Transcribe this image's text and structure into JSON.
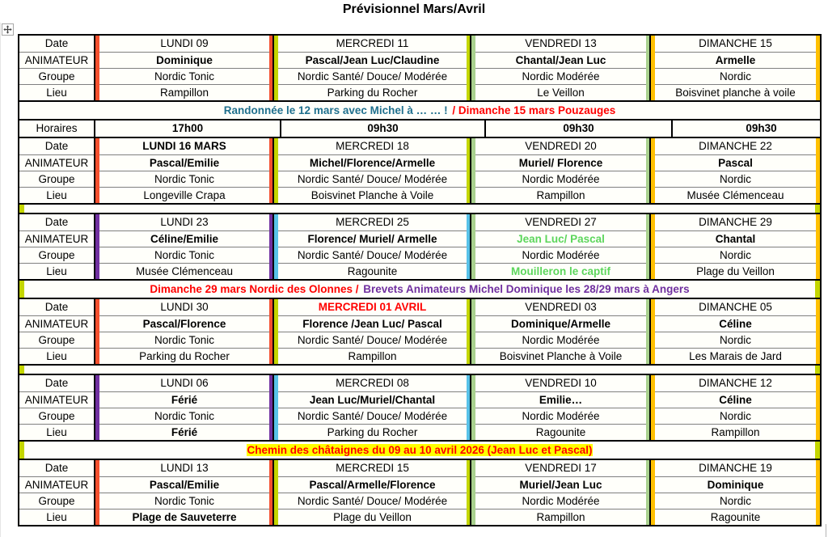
{
  "title": "Prévisionnel Mars/Avril",
  "palette": {
    "red": "#F4502E",
    "chartreuse": "#C4D600",
    "light_green": "#A9D18E",
    "gold": "#FFC000",
    "purple": "#7030A0",
    "sky_blue": "#58C2E8",
    "banner_teal": "#20708E",
    "text_red": "#FF0000",
    "text_purple": "#7030A0",
    "text_green": "#5CD65C",
    "highlight_yellow": "#FFFF00"
  },
  "row_labels": {
    "date": "Date",
    "animateur": "ANIMATEUR",
    "groupe": "Groupe",
    "lieu": "Lieu",
    "horaires": "Horaires"
  },
  "horaires": [
    "17h00",
    "09h30",
    "09h30",
    "09h30"
  ],
  "sections": [
    {
      "type": "block",
      "index": 0
    },
    {
      "type": "banner",
      "index": 0
    },
    {
      "type": "horaires"
    },
    {
      "type": "block",
      "index": 1
    },
    {
      "type": "spacer"
    },
    {
      "type": "block",
      "index": 2
    },
    {
      "type": "banner",
      "index": 1
    },
    {
      "type": "block",
      "index": 3
    },
    {
      "type": "spacer"
    },
    {
      "type": "block",
      "index": 4
    },
    {
      "type": "banner",
      "index": 2
    },
    {
      "type": "block",
      "index": 5
    }
  ],
  "banners": [
    {
      "edge_stripes": false,
      "segments": [
        {
          "t": "Randonnée le 12 mars avec Michel à … … ! ",
          "c": "banner_teal"
        },
        {
          "t": "/ Dimanche 15 mars Pouzauges",
          "c": "text_red"
        }
      ]
    },
    {
      "edge_stripes": true,
      "segments": [
        {
          "t": "Dimanche 29 mars Nordic des Olonnes / ",
          "c": "text_red"
        },
        {
          "t": "Brevets Animateurs Michel Dominique les 28/29 mars à Angers",
          "c": "text_purple"
        }
      ]
    },
    {
      "edge_stripes": true,
      "segments": [
        {
          "t": "Chemin des châtaignes du 09 au 10 avril 2026 (Jean Luc et Pascal)",
          "c": "text_red",
          "highlight": "highlight_yellow"
        }
      ]
    }
  ],
  "blocks": [
    {
      "stripes": [
        "red",
        "chartreuse",
        "light_green",
        "gold"
      ],
      "rows": {
        "date": [
          {
            "t": "LUNDI 09"
          },
          {
            "t": "MERCREDI 11"
          },
          {
            "t": "VENDREDI 13"
          },
          {
            "t": "DIMANCHE 15"
          }
        ],
        "animateur": [
          {
            "t": "Dominique"
          },
          {
            "t": "Pascal/Jean Luc/Claudine"
          },
          {
            "t": "Chantal/Jean Luc"
          },
          {
            "t": "Armelle"
          }
        ],
        "groupe": [
          {
            "t": "Nordic Tonic"
          },
          {
            "t": "Nordic Santé/ Douce/ Modérée"
          },
          {
            "t": "Nordic Modérée"
          },
          {
            "t": "Nordic"
          }
        ],
        "lieu": [
          {
            "t": "Rampillon"
          },
          {
            "t": "Parking du Rocher"
          },
          {
            "t": "Le Veillon"
          },
          {
            "t": "Boisvinet planche à voile"
          }
        ]
      }
    },
    {
      "stripes": [
        "red",
        "chartreuse",
        "light_green",
        "gold"
      ],
      "rows": {
        "date": [
          {
            "t": "LUNDI 16 MARS",
            "b": true
          },
          {
            "t": "MERCREDI 18"
          },
          {
            "t": "VENDREDI 20"
          },
          {
            "t": "DIMANCHE 22"
          }
        ],
        "animateur": [
          {
            "t": "Pascal/Emilie"
          },
          {
            "t": "Michel/Florence/Armelle"
          },
          {
            "t": "Muriel/ Florence"
          },
          {
            "t": "Pascal"
          }
        ],
        "groupe": [
          {
            "t": "Nordic Tonic"
          },
          {
            "t": "Nordic Santé/ Douce/ Modérée"
          },
          {
            "t": "Nordic Modérée"
          },
          {
            "t": "Nordic"
          }
        ],
        "lieu": [
          {
            "t": "Longeville Crapa"
          },
          {
            "t": "Boisvinet Planche à Voile"
          },
          {
            "t": "Rampillon"
          },
          {
            "t": "Musée Clémenceau"
          }
        ]
      }
    },
    {
      "stripes": [
        "purple",
        "sky_blue",
        "light_green",
        "gold"
      ],
      "rows": {
        "date": [
          {
            "t": "LUNDI 23"
          },
          {
            "t": "MERCREDI 25"
          },
          {
            "t": "VENDREDI 27"
          },
          {
            "t": "DIMANCHE 29"
          }
        ],
        "animateur": [
          {
            "t": "Céline/Emilie"
          },
          {
            "t": "Florence/ Muriel/ Armelle"
          },
          {
            "t": "Jean Luc/ Pascal",
            "c": "text_green"
          },
          {
            "t": "Chantal"
          }
        ],
        "groupe": [
          {
            "t": "Nordic Tonic"
          },
          {
            "t": "Nordic Santé/ Douce/ Modérée"
          },
          {
            "t": "Nordic Modérée"
          },
          {
            "t": "Nordic"
          }
        ],
        "lieu": [
          {
            "t": "Musée Clémenceau"
          },
          {
            "t": "Ragounite"
          },
          {
            "t": "Mouilleron le captif",
            "b": true,
            "c": "text_green"
          },
          {
            "t": "Plage du Veillon"
          }
        ]
      }
    },
    {
      "stripes": [
        "red",
        "chartreuse",
        "light_green",
        "gold"
      ],
      "rows": {
        "date": [
          {
            "t": "LUNDI 30"
          },
          {
            "t": "MERCREDI 01 AVRIL",
            "b": true,
            "c": "text_red"
          },
          {
            "t": "VENDREDI 03"
          },
          {
            "t": "DIMANCHE 05"
          }
        ],
        "animateur": [
          {
            "t": "Pascal/Florence"
          },
          {
            "t": "Florence /Jean Luc/ Pascal"
          },
          {
            "t": "Dominique/Armelle"
          },
          {
            "t": "Céline"
          }
        ],
        "groupe": [
          {
            "t": "Nordic Tonic"
          },
          {
            "t": "Nordic Santé/ Douce/ Modérée"
          },
          {
            "t": "Nordic Modérée"
          },
          {
            "t": "Nordic"
          }
        ],
        "lieu": [
          {
            "t": "Parking du Rocher"
          },
          {
            "t": "Rampillon"
          },
          {
            "t": "Boisvinet Planche à Voile"
          },
          {
            "t": "Les Marais de Jard"
          }
        ]
      }
    },
    {
      "stripes": [
        "purple",
        "sky_blue",
        "light_green",
        "gold"
      ],
      "rows": {
        "date": [
          {
            "t": "LUNDI 06"
          },
          {
            "t": "MERCREDI 08"
          },
          {
            "t": "VENDREDI 10"
          },
          {
            "t": "DIMANCHE 12"
          }
        ],
        "animateur": [
          {
            "t": "Férié"
          },
          {
            "t": "Jean Luc/Muriel/Chantal"
          },
          {
            "t": "Emilie…"
          },
          {
            "t": "Céline"
          }
        ],
        "groupe": [
          {
            "t": "Nordic Tonic"
          },
          {
            "t": "Nordic Santé/ Douce/ Modérée"
          },
          {
            "t": "Nordic Modérée"
          },
          {
            "t": "Nordic"
          }
        ],
        "lieu": [
          {
            "t": "Férié",
            "b": true
          },
          {
            "t": "Parking du Rocher"
          },
          {
            "t": "Ragounite"
          },
          {
            "t": "Rampillon"
          }
        ]
      }
    },
    {
      "stripes": [
        "red",
        "chartreuse",
        "light_green",
        "gold"
      ],
      "rows": {
        "date": [
          {
            "t": "LUNDI 13"
          },
          {
            "t": "MERCREDI 15"
          },
          {
            "t": "VENDREDI 17"
          },
          {
            "t": "DIMANCHE 19"
          }
        ],
        "animateur": [
          {
            "t": "Pascal/Emilie"
          },
          {
            "t": "Pascal/Armelle/Florence"
          },
          {
            "t": "Muriel/Jean Luc"
          },
          {
            "t": "Dominique"
          }
        ],
        "groupe": [
          {
            "t": "Nordic Tonic"
          },
          {
            "t": "Nordic Santé/ Douce/ Modérée"
          },
          {
            "t": "Nordic Modérée"
          },
          {
            "t": "Nordic"
          }
        ],
        "lieu": [
          {
            "t": "Plage de Sauveterre",
            "b": true
          },
          {
            "t": "Plage du Veillon"
          },
          {
            "t": "Rampillon"
          },
          {
            "t": "Ragounite"
          }
        ]
      }
    }
  ]
}
